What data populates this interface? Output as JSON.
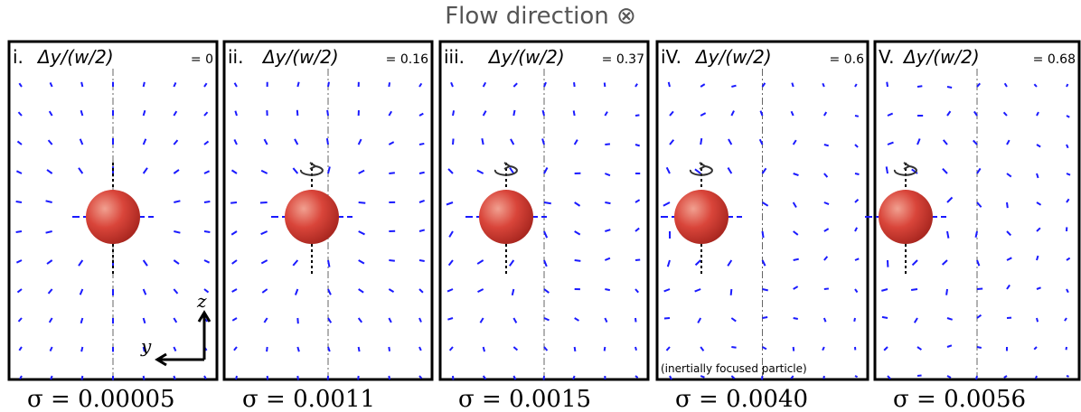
{
  "header": {
    "title": "Flow direction ⊗"
  },
  "panels": [
    {
      "label": "i.",
      "formula": "Δy/(w/2)",
      "value": "= 0",
      "sigma": "σ = 0.00005"
    },
    {
      "label": "ii.",
      "formula": "Δy/(w/2)",
      "value": "= 0.16",
      "sigma": "σ = 0.0011"
    },
    {
      "label": "iii.",
      "formula": "Δy/(w/2)",
      "value": "= 0.37",
      "sigma": "σ = 0.0015"
    },
    {
      "label": "iV.",
      "formula": "Δy/(w/2)",
      "value": "= 0.6",
      "sigma": "σ = 0.0040",
      "note": "(inertially focused particle)"
    },
    {
      "label": "V.",
      "formula": "Δy/(w/2)",
      "value": "= 0.68",
      "sigma": "σ = 0.0056"
    }
  ],
  "axes": {
    "z": "z",
    "y": "y"
  }
}
